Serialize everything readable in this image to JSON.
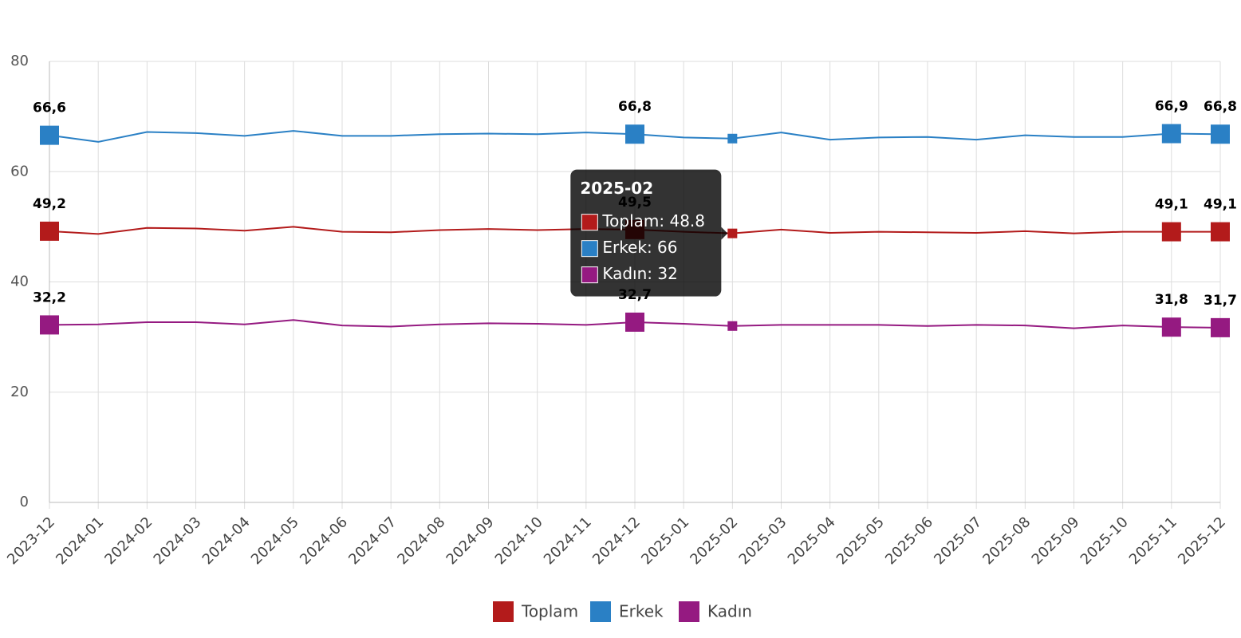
{
  "chart_data": {
    "type": "line",
    "categories": [
      "2023-12",
      "2024-01",
      "2024-02",
      "2024-03",
      "2024-04",
      "2024-05",
      "2024-06",
      "2024-07",
      "2024-08",
      "2024-09",
      "2024-10",
      "2024-11",
      "2024-12",
      "2025-01",
      "2025-02",
      "2025-03",
      "2025-04",
      "2025-05",
      "2025-06",
      "2025-07",
      "2025-08",
      "2025-09",
      "2025-10",
      "2025-11",
      "2025-12"
    ],
    "series": [
      {
        "name": "Toplam",
        "color": "#b31b1b",
        "values": [
          49.2,
          48.7,
          49.8,
          49.7,
          49.3,
          50.0,
          49.1,
          49.0,
          49.4,
          49.6,
          49.4,
          49.6,
          49.5,
          49.1,
          48.8,
          49.5,
          48.9,
          49.1,
          49.0,
          48.9,
          49.2,
          48.8,
          49.1,
          49.1,
          49.1
        ],
        "value_labels": [
          "49,2",
          null,
          null,
          null,
          null,
          null,
          null,
          null,
          null,
          null,
          null,
          null,
          "49,5",
          null,
          null,
          null,
          null,
          null,
          null,
          null,
          null,
          null,
          null,
          "49,1",
          "49,1"
        ]
      },
      {
        "name": "Erkek",
        "color": "#2a80c5",
        "values": [
          66.6,
          65.4,
          67.2,
          67.0,
          66.5,
          67.4,
          66.5,
          66.5,
          66.8,
          66.9,
          66.8,
          67.1,
          66.8,
          66.2,
          66,
          67.1,
          65.8,
          66.2,
          66.3,
          65.8,
          66.6,
          66.3,
          66.3,
          66.9,
          66.8
        ],
        "value_labels": [
          "66,6",
          null,
          null,
          null,
          null,
          null,
          null,
          null,
          null,
          null,
          null,
          null,
          "66,8",
          null,
          null,
          null,
          null,
          null,
          null,
          null,
          null,
          null,
          null,
          "66,9",
          "66,8"
        ]
      },
      {
        "name": "Kadın",
        "color": "#951a81",
        "values": [
          32.2,
          32.3,
          32.7,
          32.7,
          32.3,
          33.1,
          32.1,
          31.9,
          32.3,
          32.5,
          32.4,
          32.2,
          32.7,
          32.4,
          32,
          32.2,
          32.2,
          32.2,
          32.0,
          32.2,
          32.1,
          31.6,
          32.1,
          31.8,
          31.7
        ],
        "value_labels": [
          "32,2",
          null,
          null,
          null,
          null,
          null,
          null,
          null,
          null,
          null,
          null,
          null,
          "32,7",
          null,
          null,
          null,
          null,
          null,
          null,
          null,
          null,
          null,
          null,
          "31,8",
          "31,7"
        ]
      }
    ],
    "ylim": [
      0,
      80
    ],
    "yticks": [
      0,
      20,
      40,
      60,
      80
    ],
    "grid": true,
    "legend": "bottom",
    "tooltip": {
      "title": "2025-02",
      "items": [
        "Toplam: 48.8",
        "Erkek: 66",
        "Kadın: 32"
      ]
    }
  }
}
